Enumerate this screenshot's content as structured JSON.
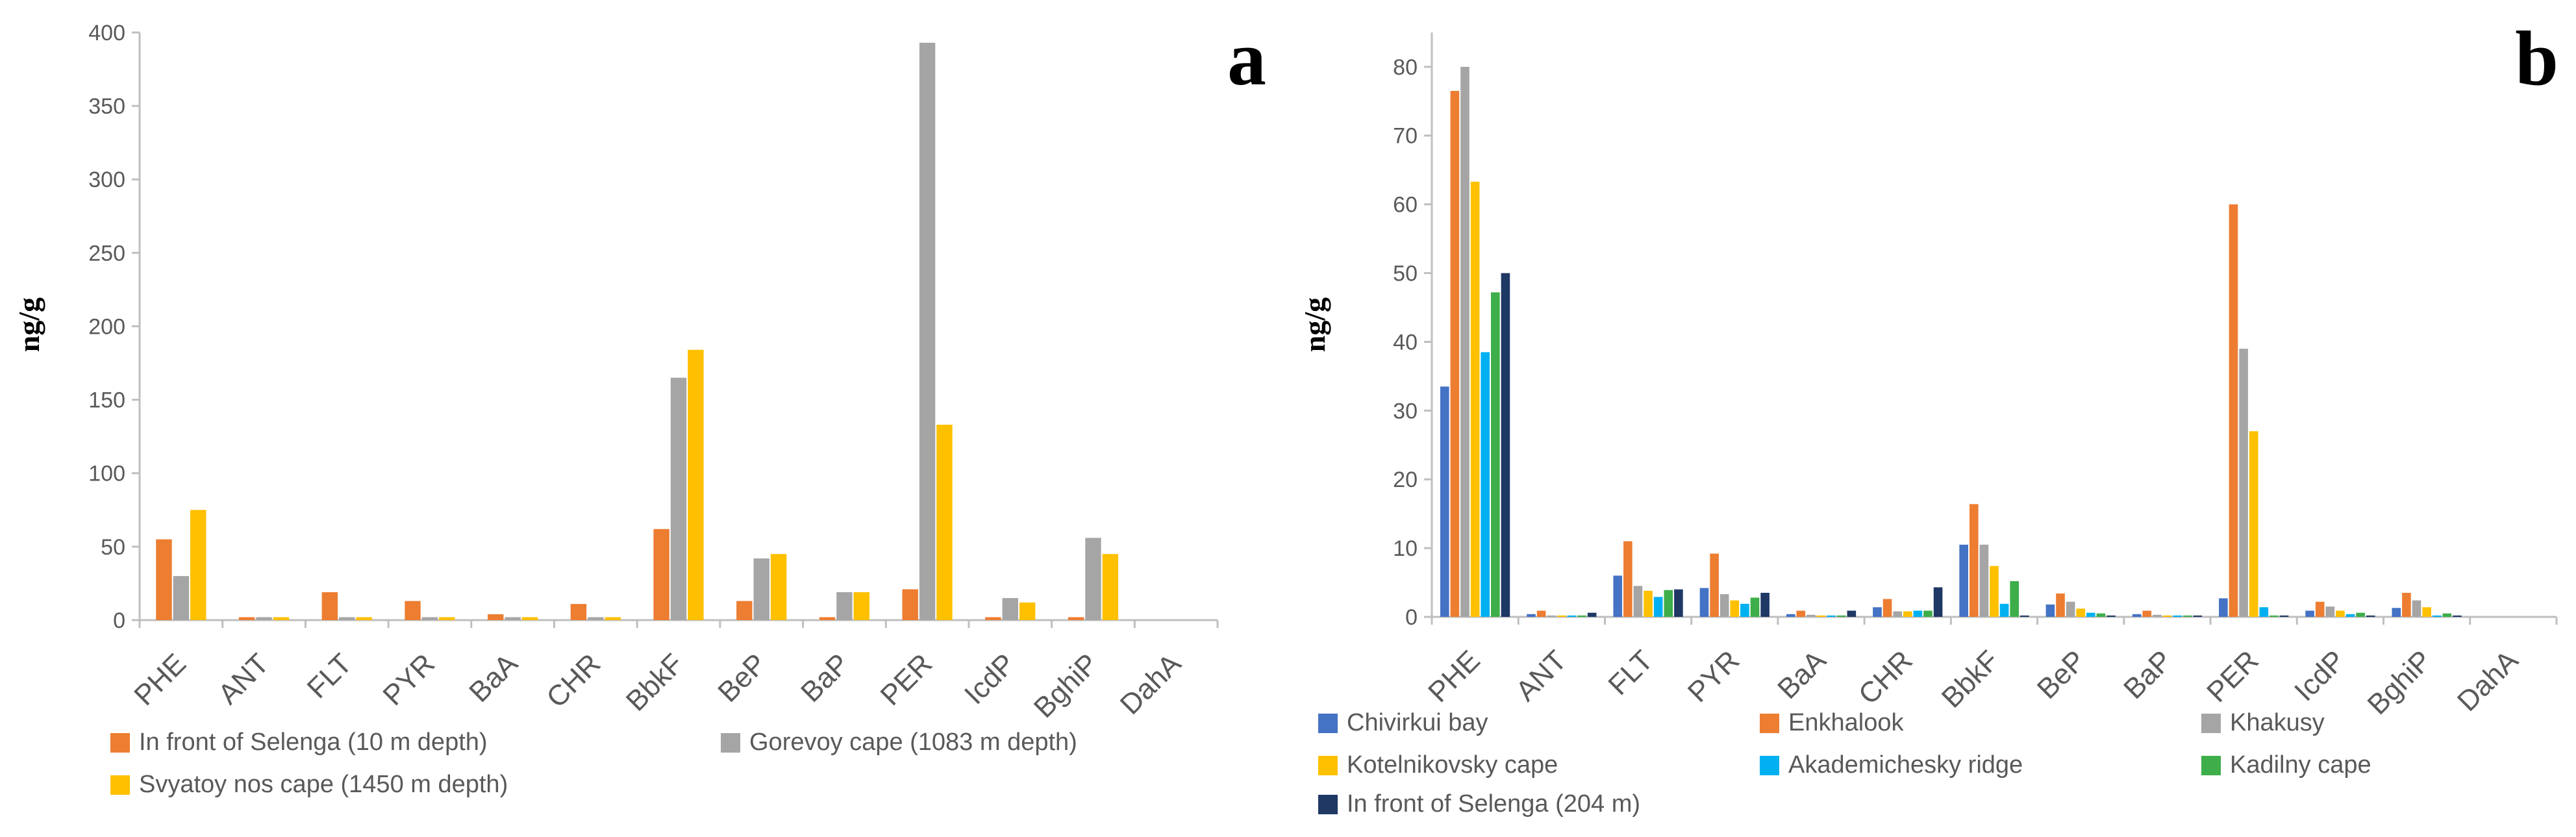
{
  "chart_data": [
    {
      "id": "a",
      "type": "bar",
      "panel_label": "a",
      "ylabel": "ng/g",
      "xlabel": "",
      "ylim": [
        0,
        400
      ],
      "yticks": [
        0,
        50,
        100,
        150,
        200,
        250,
        300,
        350,
        400
      ],
      "grid": false,
      "legend_position": "bottom-left",
      "categories": [
        "PHE",
        "ANT",
        "FLT",
        "PYR",
        "BaA",
        "CHR",
        "BbkF",
        "BeP",
        "BaP",
        "PER",
        "IcdP",
        "BghiP",
        "DahA"
      ],
      "series": [
        {
          "name": "In front of Selenga (10 m depth)",
          "color": "#ED7D31",
          "values": [
            55,
            2,
            19,
            13,
            4,
            11,
            62,
            13,
            2,
            21,
            2,
            2,
            0
          ]
        },
        {
          "name": "Gorevoy cape (1083 m depth)",
          "color": "#A5A5A5",
          "values": [
            30,
            2,
            2,
            2,
            2,
            2,
            165,
            42,
            19,
            393,
            15,
            56,
            0
          ]
        },
        {
          "name": "Svyatoy nos cape (1450 m depth)",
          "color": "#FFC000",
          "values": [
            75,
            2,
            2,
            2,
            2,
            2,
            184,
            45,
            19,
            133,
            12,
            45,
            0
          ]
        }
      ]
    },
    {
      "id": "b",
      "type": "bar",
      "panel_label": "b",
      "ylabel": "ng/g",
      "xlabel": "",
      "ylim": [
        0,
        85
      ],
      "yticks": [
        0,
        10,
        20,
        30,
        40,
        50,
        60,
        70,
        80
      ],
      "grid": false,
      "legend_position": "bottom-left",
      "categories": [
        "PHE",
        "ANT",
        "FLT",
        "PYR",
        "BaA",
        "CHR",
        "BbkF",
        "BeP",
        "BaP",
        "PER",
        "IcdP",
        "BghiP",
        "DahA"
      ],
      "series": [
        {
          "name": "Chivirkui bay",
          "color": "#4472C4",
          "values": [
            33.5,
            0.4,
            6,
            4.2,
            0.4,
            1.4,
            10.5,
            1.8,
            0.4,
            2.7,
            0.9,
            1.3,
            0
          ]
        },
        {
          "name": "Enkhalook",
          "color": "#ED7D31",
          "values": [
            76.5,
            0.9,
            11,
            9.2,
            0.9,
            2.6,
            16.4,
            3.4,
            0.9,
            60,
            2.2,
            3.5,
            0
          ]
        },
        {
          "name": "Khakusy",
          "color": "#A5A5A5",
          "values": [
            80,
            0.2,
            4.5,
            3.3,
            0.3,
            0.8,
            10.5,
            2.2,
            0.3,
            39,
            1.5,
            2.4,
            0
          ]
        },
        {
          "name": "Kotelnikovsky cape",
          "color": "#FFC000",
          "values": [
            63.3,
            0.2,
            3.8,
            2.4,
            0.2,
            0.8,
            7.4,
            1.2,
            0.2,
            27,
            0.9,
            1.4,
            0
          ]
        },
        {
          "name": "Akademichesky ridge",
          "color": "#00B0F0",
          "values": [
            38.5,
            0.2,
            2.9,
            1.9,
            0.2,
            0.9,
            1.9,
            0.6,
            0.2,
            1.4,
            0.4,
            0.2,
            0
          ]
        },
        {
          "name": "Kadilny cape",
          "color": "#3DAE49",
          "values": [
            47.2,
            0.2,
            3.9,
            2.8,
            0.2,
            0.9,
            5.2,
            0.5,
            0.2,
            0.2,
            0.6,
            0.5,
            0
          ]
        },
        {
          "name": "In front of Selenga (204 m)",
          "color": "#1F3864",
          "values": [
            50,
            0.6,
            4,
            3.5,
            0.9,
            4.3,
            0.2,
            0.2,
            0.2,
            0.2,
            0.2,
            0.2,
            0
          ]
        }
      ]
    }
  ]
}
